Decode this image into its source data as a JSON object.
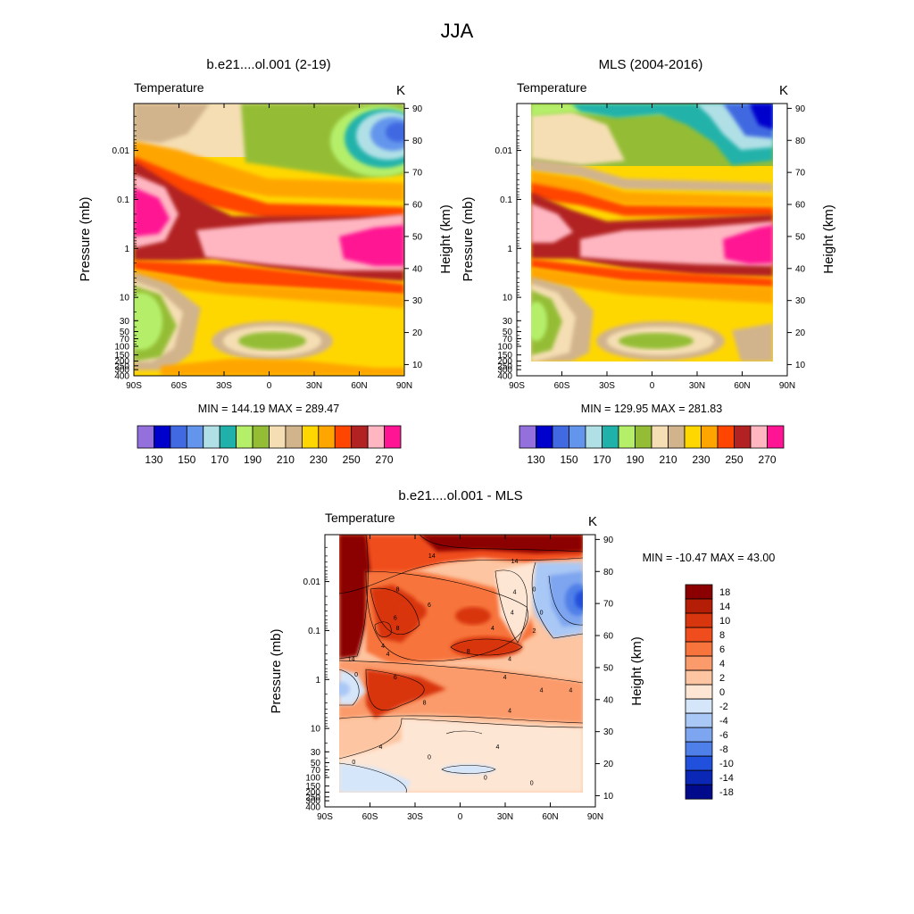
{
  "chart_data": {
    "type": "heatmap",
    "title": "JJA",
    "panels": [
      {
        "id": "model",
        "subtitle": "b.e21....ol.001 (2-19)",
        "variable": "Temperature",
        "units": "K",
        "ylabel_left": "Pressure (mb)",
        "ylabel_right": "Height (km)",
        "x_ticks": [
          "90S",
          "60S",
          "30S",
          "0",
          "30N",
          "60N",
          "90N"
        ],
        "pressure_ticks": [
          "0.01",
          "0.1",
          "1",
          "10",
          "30",
          "50",
          "70",
          "100",
          "150",
          "200",
          "250",
          "300",
          "400"
        ],
        "height_ticks": [
          "90",
          "80",
          "70",
          "60",
          "50",
          "40",
          "30",
          "20",
          "10"
        ],
        "min_max": "MIN = 144.19  MAX = 289.47",
        "colorbar_labels": [
          "130",
          "150",
          "170",
          "190",
          "210",
          "230",
          "250",
          "270"
        ],
        "colorbar_colors": [
          "#9370db",
          "#0000cd",
          "#4169e1",
          "#6495ed",
          "#b0e0e6",
          "#20b2aa",
          "#b5ef6a",
          "#94bd35",
          "#f5deb3",
          "#d2b48c",
          "#ffd700",
          "#ffa500",
          "#ff4500",
          "#b22222",
          "#ffb6c1",
          "#ff1493"
        ],
        "field_features": [
          {
            "desc": "summer polar stratopause maximum",
            "lat": -80,
            "height": 63,
            "value": 275
          },
          {
            "desc": "stratopause band",
            "lat": 60,
            "height": 48,
            "value": 270
          },
          {
            "desc": "summer mesopause minimum",
            "lat": 75,
            "height": 82,
            "value": 160
          },
          {
            "desc": "winter polar vortex",
            "lat": -80,
            "height": 25,
            "value": 195
          },
          {
            "desc": "tropical tropopause minimum",
            "lat": 10,
            "height": 17,
            "value": 195
          }
        ]
      },
      {
        "id": "obs",
        "subtitle": "MLS (2004-2016)",
        "variable": "Temperature",
        "units": "K",
        "ylabel_left": "Pressure (mb)",
        "ylabel_right": "Height (km)",
        "x_ticks": [
          "90S",
          "60S",
          "30S",
          "0",
          "30N",
          "60N",
          "90N"
        ],
        "pressure_ticks": [
          "0.01",
          "0.1",
          "1",
          "10",
          "30",
          "50",
          "70",
          "100",
          "150",
          "200",
          "250",
          "300",
          "400"
        ],
        "height_ticks": [
          "90",
          "80",
          "70",
          "60",
          "50",
          "40",
          "30",
          "20",
          "10"
        ],
        "min_max": "MIN = 129.95  MAX = 281.83",
        "colorbar_labels": [
          "130",
          "150",
          "170",
          "190",
          "210",
          "230",
          "250",
          "270"
        ],
        "colorbar_colors": [
          "#9370db",
          "#0000cd",
          "#4169e1",
          "#6495ed",
          "#b0e0e6",
          "#20b2aa",
          "#b5ef6a",
          "#94bd35",
          "#f5deb3",
          "#d2b48c",
          "#ffd700",
          "#ffa500",
          "#ff4500",
          "#b22222",
          "#ffb6c1",
          "#ff1493"
        ],
        "lat_range": [
          -82,
          82
        ],
        "field_features": [
          {
            "desc": "stratopause band",
            "lat": 60,
            "height": 48,
            "value": 270
          },
          {
            "desc": "summer mesopause minimum",
            "lat": 75,
            "height": 90,
            "value": 135
          },
          {
            "desc": "winter polar vortex",
            "lat": -80,
            "height": 25,
            "value": 190
          }
        ]
      },
      {
        "id": "diff",
        "subtitle": "b.e21....ol.001 - MLS",
        "variable": "Temperature",
        "units": "K",
        "ylabel_left": "Pressure (mb)",
        "ylabel_right": "Height (km)",
        "x_ticks": [
          "90S",
          "60S",
          "30S",
          "0",
          "30N",
          "60N",
          "90N"
        ],
        "pressure_ticks": [
          "0.01",
          "0.1",
          "1",
          "10",
          "30",
          "50",
          "70",
          "100",
          "150",
          "200",
          "250",
          "300",
          "400"
        ],
        "height_ticks": [
          "90",
          "80",
          "70",
          "60",
          "50",
          "40",
          "30",
          "20",
          "10"
        ],
        "min_max": "MIN = -10.47  MAX =  43.00",
        "colorbar_labels": [
          "18",
          "14",
          "10",
          "8",
          "6",
          "4",
          "2",
          "0",
          "-2",
          "-4",
          "-6",
          "-8",
          "-10",
          "-14",
          "-18"
        ],
        "colorbar_colors": [
          "#8b0000",
          "#b51e06",
          "#d8360e",
          "#f04d1f",
          "#f7743c",
          "#fb9a6b",
          "#fdc5a1",
          "#fee6d4",
          "#d6e6fa",
          "#aac8f5",
          "#7ea5ef",
          "#4f7fe8",
          "#2050dc",
          "#0a28b5",
          "#000a8a"
        ],
        "contour_labels": [
          "14",
          "14",
          "8",
          "6",
          "4",
          "0",
          "4",
          "0",
          "6",
          "4",
          "8",
          "2",
          "4",
          "4",
          "8",
          "4",
          "4",
          "14",
          "6",
          "4",
          "4",
          "0",
          "4",
          "8",
          "4",
          "4",
          "0",
          "0",
          "0",
          "0"
        ],
        "field_features": [
          {
            "desc": "warm bias SH high latitudes",
            "lat": -85,
            "height": 75,
            "value": 20
          },
          {
            "desc": "warm bias upper mesosphere",
            "lat": 20,
            "height": 90,
            "value": 20
          },
          {
            "desc": "cold bias NH upper mesosphere",
            "lat": 78,
            "height": 72,
            "value": -10
          },
          {
            "desc": "cold bias SH stratopause",
            "lat": -85,
            "height": 45,
            "value": -3
          }
        ]
      }
    ]
  }
}
